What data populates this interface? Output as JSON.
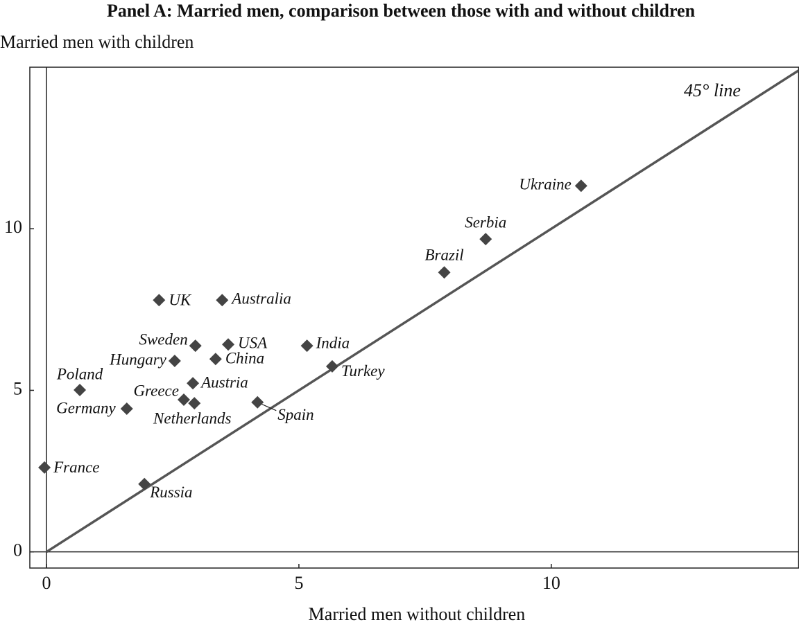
{
  "chart_data": {
    "type": "scatter",
    "title": "Panel A: Married men, comparison between those with and without children",
    "y_label": "Married men with children",
    "x_label": "Married men without children",
    "annotation": "45° line",
    "point_labels": [
      "Ukraine",
      "Serbia",
      "Brazil",
      "UK",
      "Australia",
      "Sweden",
      "USA",
      "India",
      "Hungary",
      "China",
      "Turkey",
      "Austria",
      "Poland",
      "Greece",
      "Netherlands",
      "Spain",
      "Germany",
      "France",
      "Russia"
    ],
    "x": [
      10.59,
      8.7,
      7.88,
      2.23,
      3.48,
      2.95,
      3.6,
      5.16,
      2.54,
      3.35,
      5.66,
      2.9,
      0.66,
      2.72,
      2.93,
      4.18,
      1.59,
      -0.04,
      1.94
    ],
    "values": [
      11.33,
      9.68,
      8.65,
      7.79,
      7.79,
      6.38,
      6.42,
      6.38,
      5.91,
      5.97,
      5.74,
      5.22,
      5.01,
      4.71,
      4.6,
      4.63,
      4.43,
      2.61,
      2.1
    ],
    "color": "#444444",
    "line_color": "#555555",
    "xlim": [
      -0.33,
      14.9
    ],
    "ylim": [
      -0.5,
      15
    ],
    "xticks": [
      0,
      5,
      10
    ],
    "yticks": [
      0,
      5,
      10
    ]
  }
}
